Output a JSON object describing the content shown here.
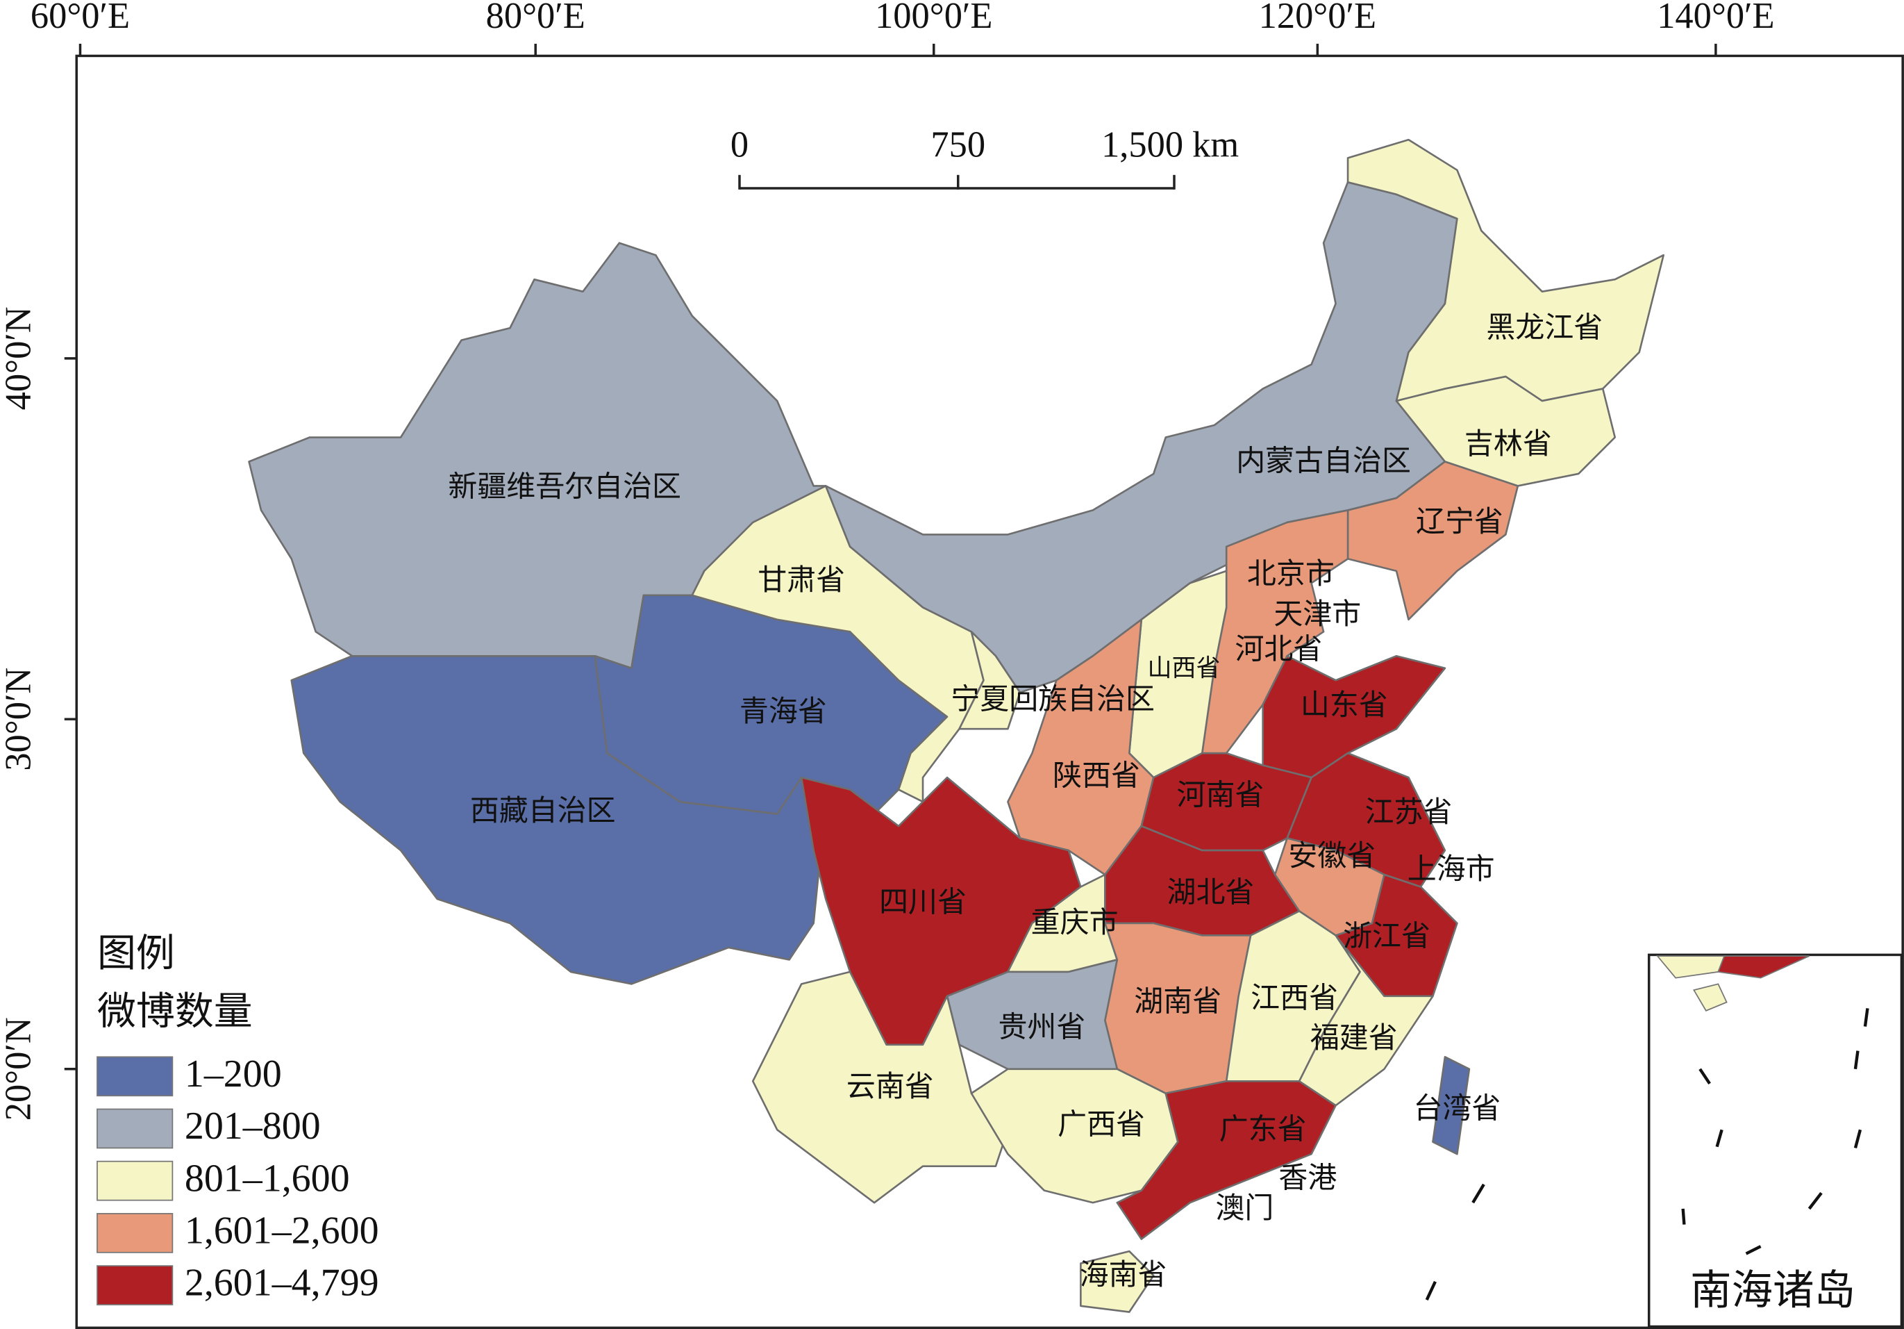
{
  "longitude_labels": [
    "60°0′E",
    "80°0′E",
    "100°0′E",
    "120°0′E",
    "140°0′E"
  ],
  "latitude_labels": [
    "40°0′N",
    "30°0′N",
    "20°0′N"
  ],
  "scale_bar": [
    "0",
    "750",
    "1,500 km"
  ],
  "legend": {
    "title": "图例",
    "subtitle": "微博数量",
    "items": [
      {
        "label": "1–200",
        "color": "#5a6ea8"
      },
      {
        "label": "201–800",
        "color": "#a2acba"
      },
      {
        "label": "801–1,600",
        "color": "#f6f5c6"
      },
      {
        "label": "1,601–2,600",
        "color": "#e8997a"
      },
      {
        "label": "2,601–4,799",
        "color": "#b01f24"
      }
    ]
  },
  "regions": [
    {
      "label": "新疆维吾尔自治区",
      "color": "#a2acba"
    },
    {
      "label": "西藏自治区",
      "color": "#5a6ea8"
    },
    {
      "label": "青海省",
      "color": "#5a6ea8"
    },
    {
      "label": "甘肃省",
      "color": "#f6f5c6"
    },
    {
      "label": "内蒙古自治区",
      "color": "#a2acba"
    },
    {
      "label": "黑龙江省",
      "color": "#f6f5c6"
    },
    {
      "label": "吉林省",
      "color": "#f6f5c6"
    },
    {
      "label": "辽宁省",
      "color": "#e8997a"
    },
    {
      "label": "北京市"
    },
    {
      "label": "天津市"
    },
    {
      "label": "河北省",
      "color": "#e8997a"
    },
    {
      "label": "山西省",
      "color": "#f6f5c6"
    },
    {
      "label": "宁夏回族自治区",
      "color": "#f6f5c6"
    },
    {
      "label": "山东省",
      "color": "#b01f24"
    },
    {
      "label": "陕西省",
      "color": "#e8997a"
    },
    {
      "label": "河南省",
      "color": "#b01f24"
    },
    {
      "label": "江苏省",
      "color": "#b01f24"
    },
    {
      "label": "安徽省",
      "color": "#e8997a"
    },
    {
      "label": "上海市"
    },
    {
      "label": "湖北省",
      "color": "#b01f24"
    },
    {
      "label": "四川省",
      "color": "#b01f24"
    },
    {
      "label": "重庆市",
      "color": "#f6f5c6"
    },
    {
      "label": "浙江省",
      "color": "#b01f24"
    },
    {
      "label": "湖南省",
      "color": "#e8997a"
    },
    {
      "label": "江西省",
      "color": "#f6f5c6"
    },
    {
      "label": "福建省",
      "color": "#f6f5c6"
    },
    {
      "label": "贵州省",
      "color": "#a2acba"
    },
    {
      "label": "云南省",
      "color": "#f6f5c6"
    },
    {
      "label": "广西省",
      "color": "#f6f5c6"
    },
    {
      "label": "广东省",
      "color": "#b01f24"
    },
    {
      "label": "台湾省",
      "color": "#5a6ea8"
    },
    {
      "label": "香港"
    },
    {
      "label": "澳门"
    },
    {
      "label": "海南省",
      "color": "#f6f5c6"
    }
  ],
  "inset_label": "南海诸岛"
}
